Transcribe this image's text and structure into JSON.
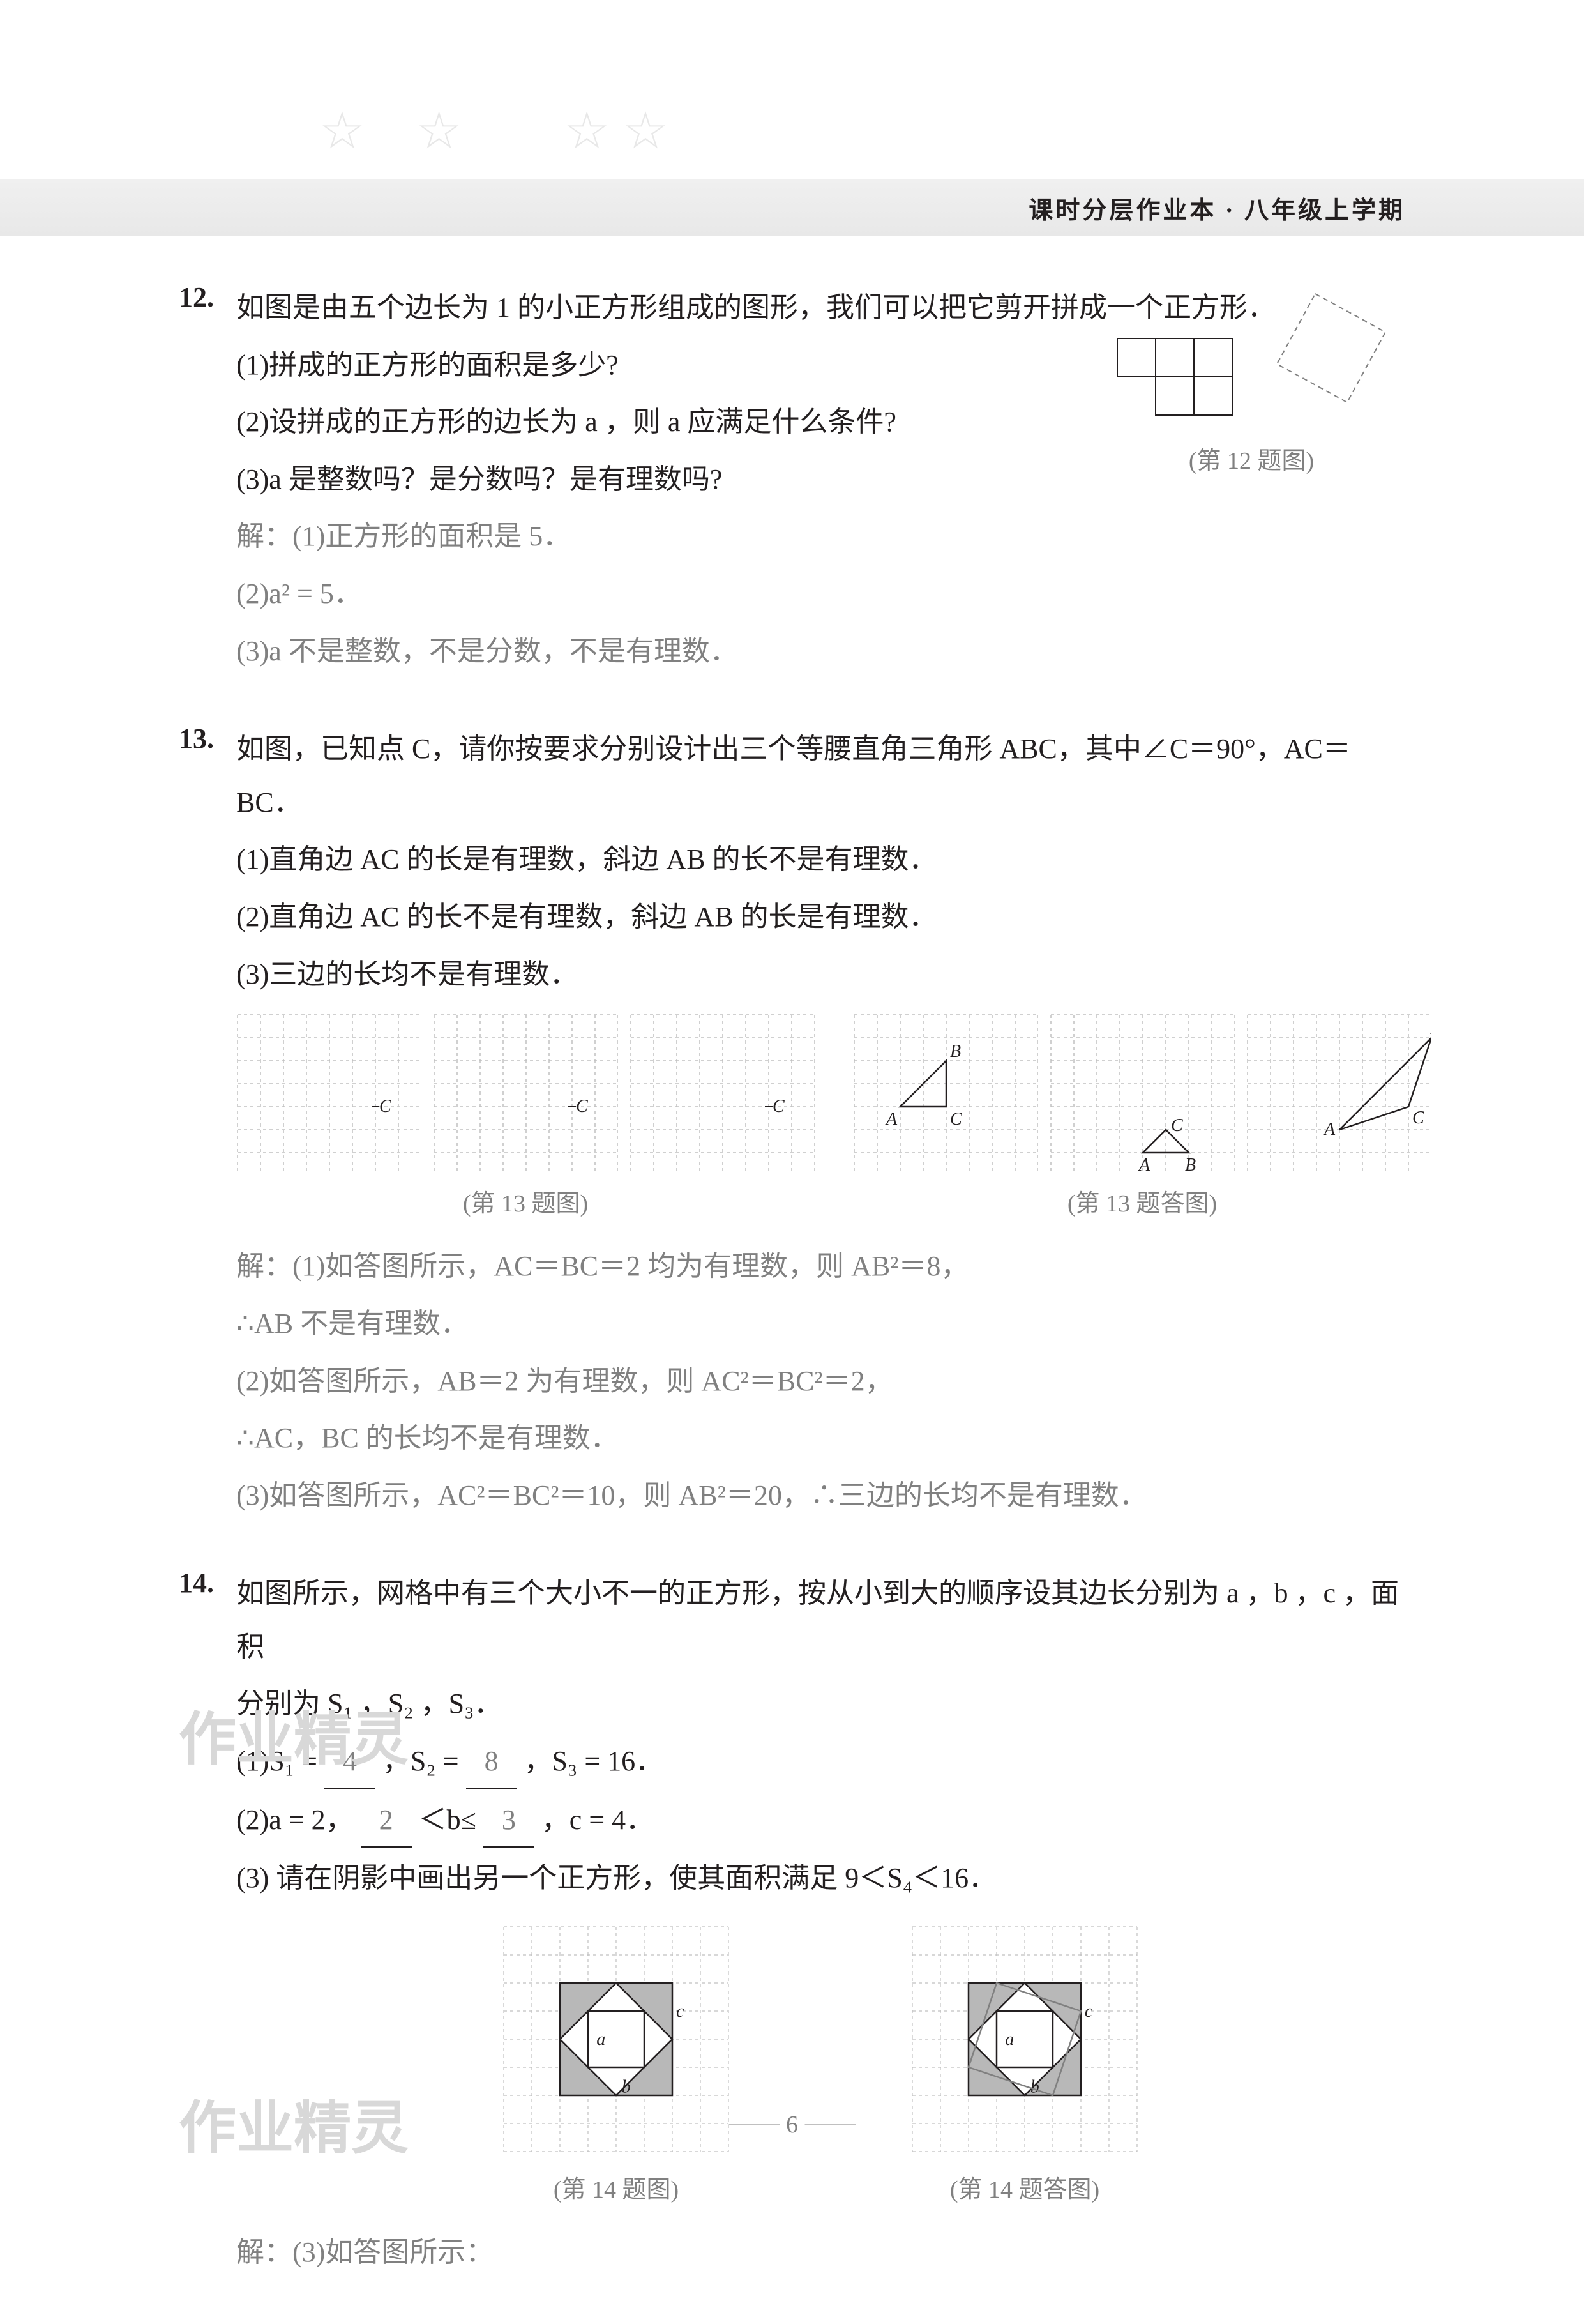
{
  "header": {
    "title": "课时分层作业本 · 八年级上学期"
  },
  "problems": {
    "p12": {
      "num": "12.",
      "stem": "如图是由五个边长为 1 的小正方形组成的图形，我们可以把它剪开拼成一个正方形．",
      "q1": "(1)拼成的正方形的面积是多少?",
      "q2": "(2)设拼成的正方形的边长为 a ，则 a 应满足什么条件?",
      "q3": "(3)a 是整数吗？是分数吗？是有理数吗?",
      "a1": "解：(1)正方形的面积是 5．",
      "a2": "(2)a² = 5．",
      "a3": "(3)a 不是整数，不是分数，不是有理数．",
      "fig_caption": "(第 12 题图)"
    },
    "p13": {
      "num": "13.",
      "stem": "如图，已知点 C，请你按要求分别设计出三个等腰直角三角形 ABC，其中∠C＝90°，AC＝BC．",
      "q1": "(1)直角边 AC 的长是有理数，斜边 AB 的长不是有理数．",
      "q2": "(2)直角边 AC 的长不是有理数，斜边 AB 的长是有理数．",
      "q3": "(3)三边的长均不是有理数．",
      "fig_caption": "(第 13 题图)",
      "ans_fig_caption": "(第 13 题答图)",
      "a_head": "解：(1)如答图所示，AC＝BC＝2 均为有理数，则 AB²＝8，",
      "a1b": "∴AB 不是有理数．",
      "a2": "(2)如答图所示，AB＝2 为有理数，则 AC²＝BC²＝2，",
      "a2b": "∴AC，BC 的长均不是有理数．",
      "a3": "(3)如答图所示，AC²＝BC²＝10，则 AB²＝20，∴三边的长均不是有理数．"
    },
    "p14": {
      "num": "14.",
      "stem1": "如图所示，网格中有三个大小不一的正方形，按从小到大的顺序设其边长分别为 a ，b ，c ，面积",
      "stem2": "分别为 S₁ ，S₂ ，S₃．",
      "q1a": "(1)S₁ =",
      "q1b": "，S₂ =",
      "q1c": "，S₃ = 16．",
      "s1": "4",
      "s2": "8",
      "q2a": "(2)a = 2，",
      "q2b": "＜b≤",
      "q2c": "，c = 4．",
      "b_lo": "2",
      "b_hi": "3",
      "q3": "(3)   请在阴影中画出另一个正方形，使其面积满足 9＜S₄＜16．",
      "fig_caption": "(第 14 题图)",
      "ans_fig_caption": "(第 14 题答图)",
      "a3": "解：(3)如答图所示："
    }
  },
  "page_number": "6",
  "colors": {
    "text": "#231f20",
    "answer": "#808080",
    "grid_light": "#d8d8d8",
    "grid_dash": "#c0c0c0",
    "header_bg": "#ececec",
    "shade": "#b8b8b8"
  },
  "grids": {
    "p13_small": {
      "cols": 8,
      "rows": 7,
      "cell": 36
    },
    "p13_ans": {
      "cols": 8,
      "rows": 7,
      "cell": 36
    },
    "p14": {
      "cols": 8,
      "rows": 8,
      "cell": 44
    }
  }
}
